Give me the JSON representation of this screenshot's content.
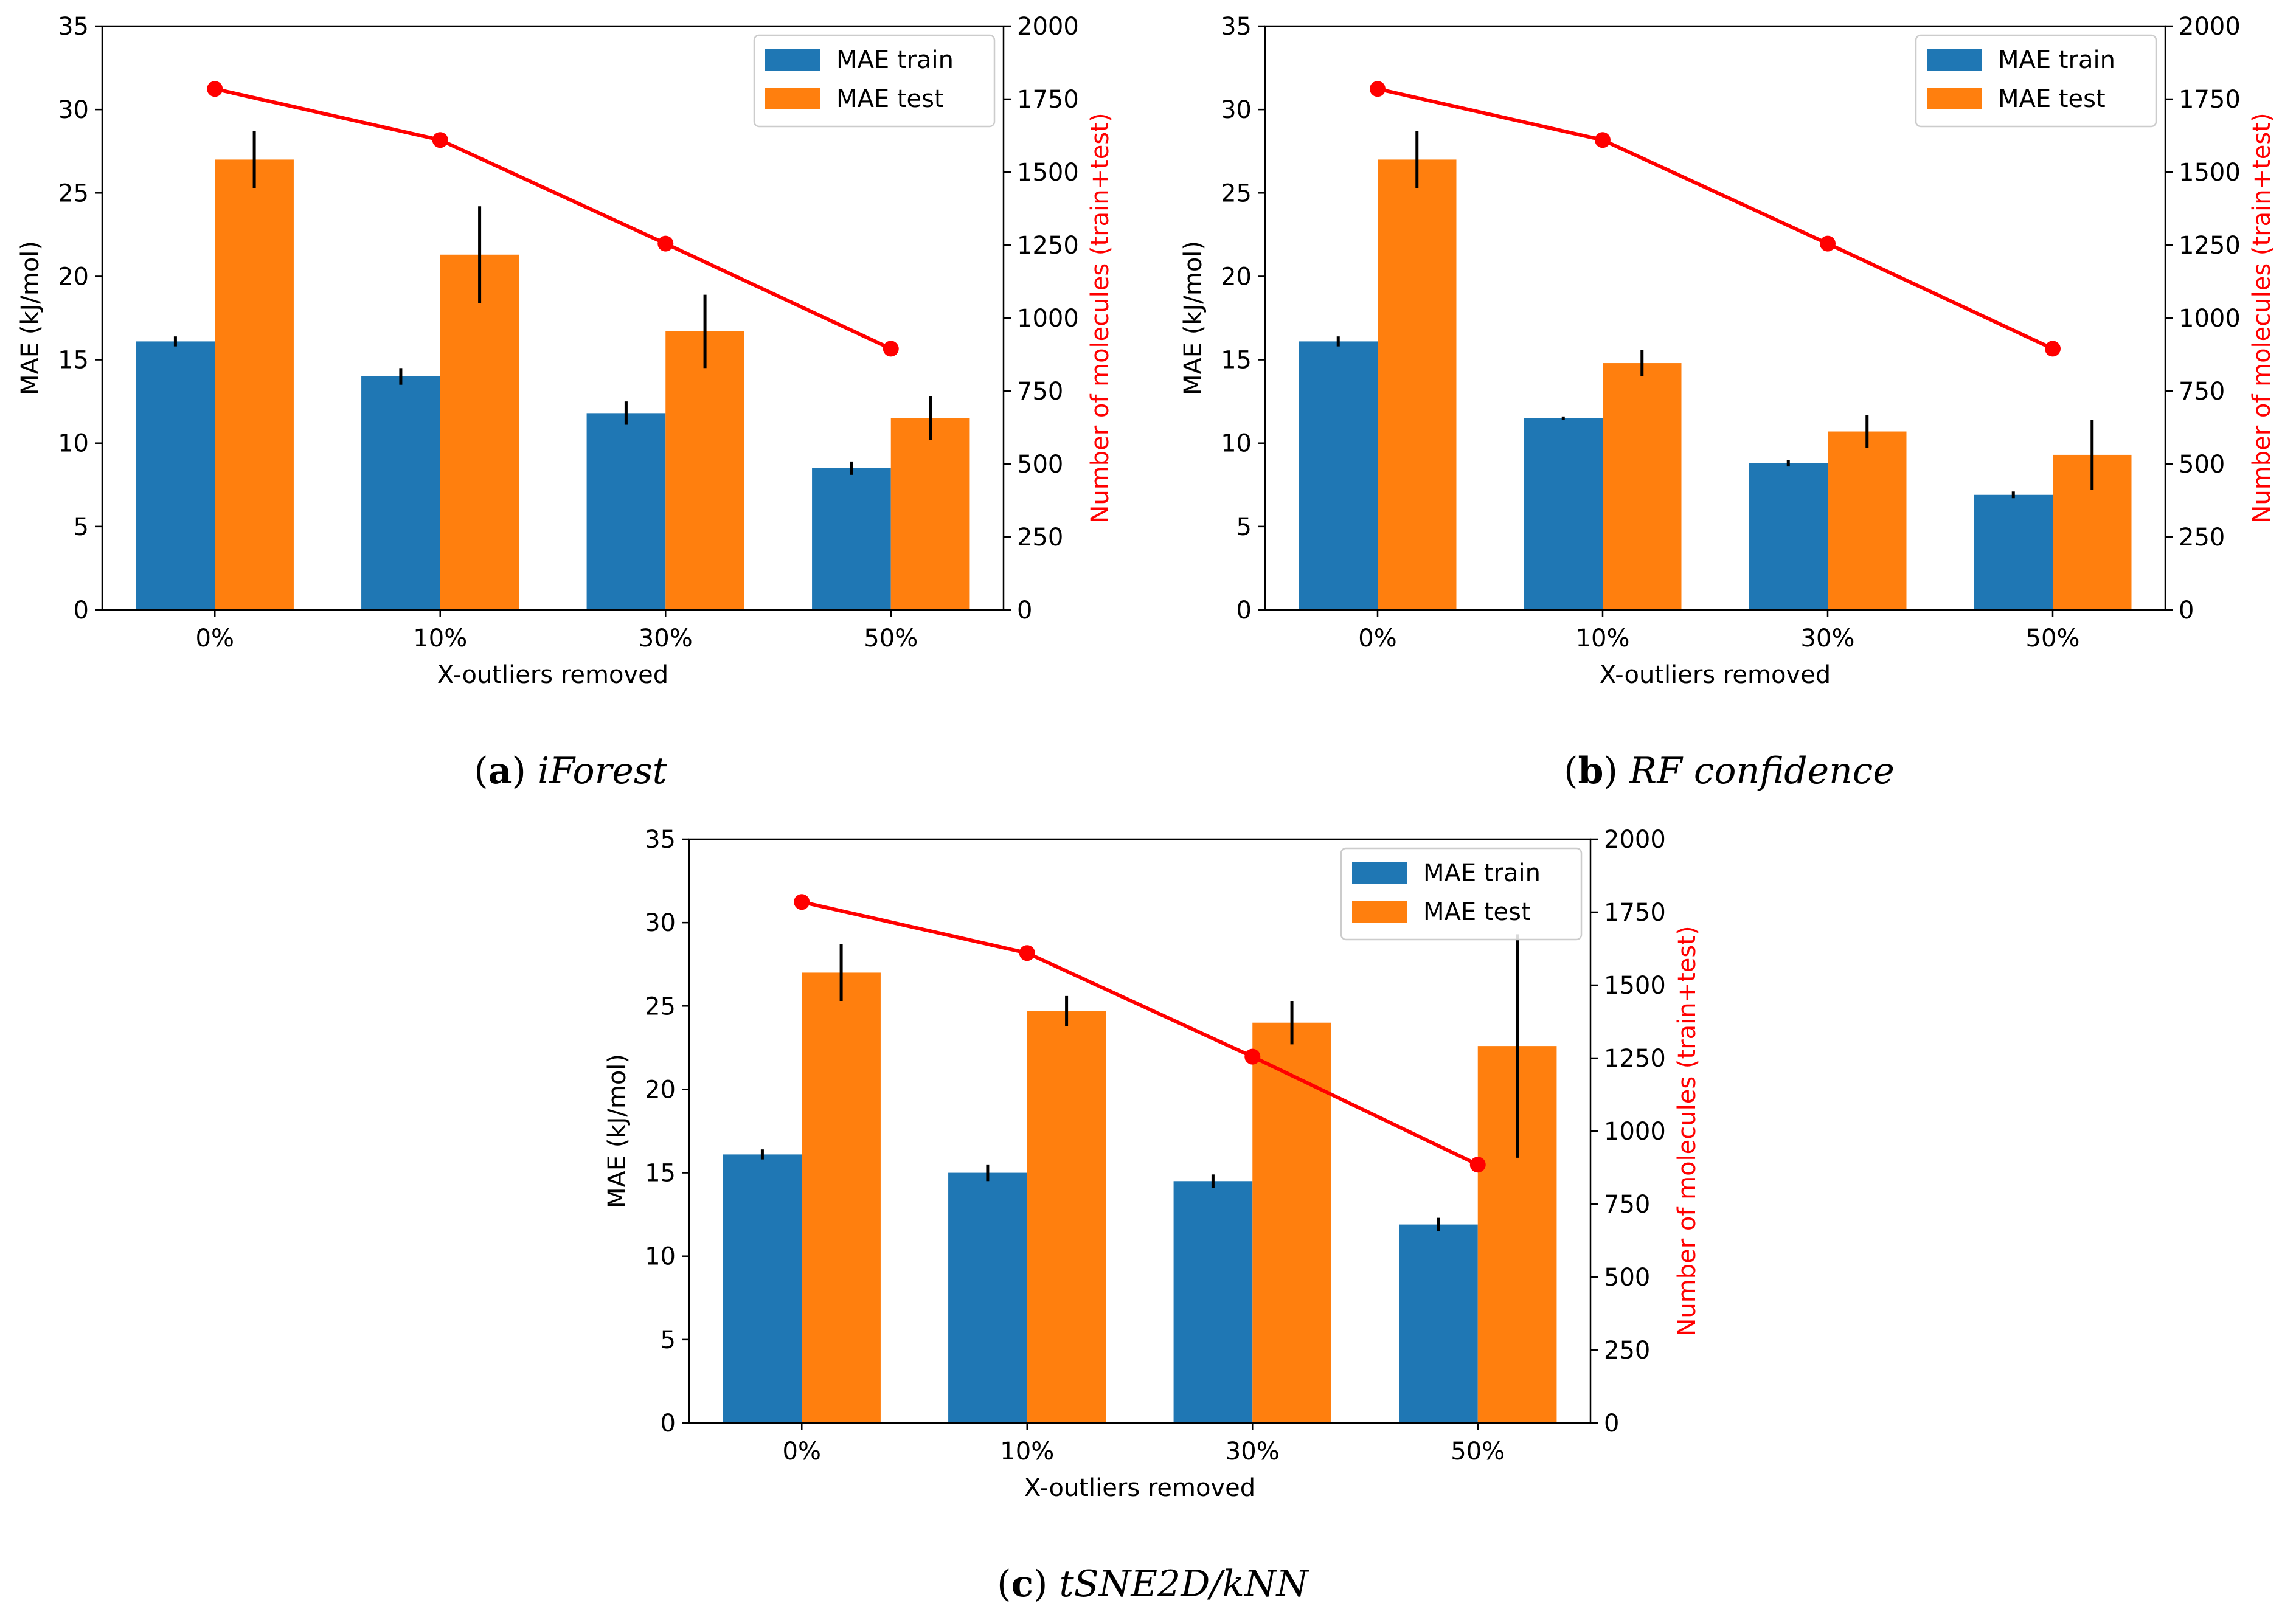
{
  "colors": {
    "train": "#1f77b4",
    "test": "#ff7f0e",
    "count": "#ff0000",
    "error": "#000000"
  },
  "chart_data": [
    {
      "type": "bar",
      "caption_letter": "a",
      "caption_text": "iForest",
      "categories": [
        "0%",
        "10%",
        "30%",
        "50%"
      ],
      "xlabel": "X-outliers removed",
      "ylabel": "MAE (kJ/mol)",
      "ylim": [
        0,
        35
      ],
      "yticks": [
        "0",
        "5",
        "10",
        "15",
        "20",
        "25",
        "30",
        "35"
      ],
      "y2label": "Number of molecules (train+test)",
      "y2lim": [
        0,
        2000
      ],
      "y2ticks": [
        "0",
        "250",
        "500",
        "750",
        "1000",
        "1250",
        "1500",
        "1750",
        "2000"
      ],
      "legend": [
        "MAE train",
        "MAE test"
      ],
      "legend_position": "top-right",
      "series": [
        {
          "name": "MAE train",
          "values": [
            16.1,
            14.0,
            11.8,
            8.5
          ],
          "errors": [
            0.3,
            0.5,
            0.7,
            0.4
          ]
        },
        {
          "name": "MAE test",
          "values": [
            27.0,
            21.3,
            16.7,
            11.5
          ],
          "errors": [
            1.7,
            2.9,
            2.2,
            1.3
          ]
        }
      ],
      "line": {
        "name": "Number of molecules",
        "values": [
          1785,
          1610,
          1255,
          895
        ]
      }
    },
    {
      "type": "bar",
      "caption_letter": "b",
      "caption_text": "RF confidence",
      "categories": [
        "0%",
        "10%",
        "30%",
        "50%"
      ],
      "xlabel": "X-outliers removed",
      "ylabel": "MAE (kJ/mol)",
      "ylim": [
        0,
        35
      ],
      "yticks": [
        "0",
        "5",
        "10",
        "15",
        "20",
        "25",
        "30",
        "35"
      ],
      "y2label": "Number of molecules (train+test)",
      "y2lim": [
        0,
        2000
      ],
      "y2ticks": [
        "0",
        "250",
        "500",
        "750",
        "1000",
        "1250",
        "1500",
        "1750",
        "2000"
      ],
      "legend": [
        "MAE train",
        "MAE test"
      ],
      "legend_position": "top-right",
      "series": [
        {
          "name": "MAE train",
          "values": [
            16.1,
            11.5,
            8.8,
            6.9
          ],
          "errors": [
            0.3,
            0.1,
            0.2,
            0.2
          ]
        },
        {
          "name": "MAE test",
          "values": [
            27.0,
            14.8,
            10.7,
            9.3
          ],
          "errors": [
            1.7,
            0.8,
            1.0,
            2.1
          ]
        }
      ],
      "line": {
        "name": "Number of molecules",
        "values": [
          1785,
          1610,
          1255,
          895
        ]
      }
    },
    {
      "type": "bar",
      "caption_letter": "c",
      "caption_text": "tSNE2D/kNN",
      "categories": [
        "0%",
        "10%",
        "30%",
        "50%"
      ],
      "xlabel": "X-outliers removed",
      "ylabel": "MAE (kJ/mol)",
      "ylim": [
        0,
        35
      ],
      "yticks": [
        "0",
        "5",
        "10",
        "15",
        "20",
        "25",
        "30",
        "35"
      ],
      "y2label": "Number of molecules (train+test)",
      "y2lim": [
        0,
        2000
      ],
      "y2ticks": [
        "0",
        "250",
        "500",
        "750",
        "1000",
        "1250",
        "1500",
        "1750",
        "2000"
      ],
      "legend": [
        "MAE train",
        "MAE test"
      ],
      "legend_position": "top-right",
      "series": [
        {
          "name": "MAE train",
          "values": [
            16.1,
            15.0,
            14.5,
            11.9
          ],
          "errors": [
            0.3,
            0.5,
            0.4,
            0.4
          ]
        },
        {
          "name": "MAE test",
          "values": [
            27.0,
            24.7,
            24.0,
            22.6
          ],
          "errors": [
            1.7,
            0.9,
            1.3,
            6.7
          ]
        }
      ],
      "line": {
        "name": "Number of molecules",
        "values": [
          1785,
          1610,
          1255,
          885
        ]
      }
    }
  ]
}
